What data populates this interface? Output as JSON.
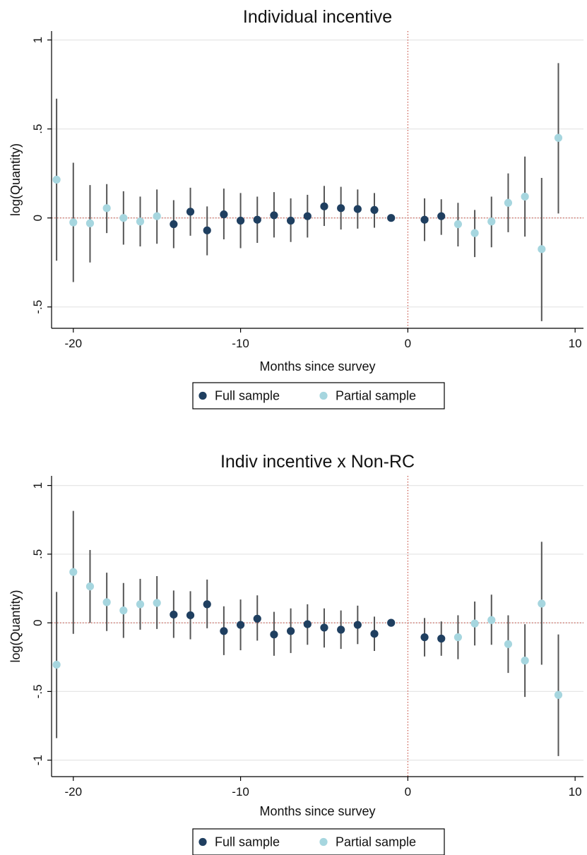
{
  "chart_data": [
    {
      "type": "scatter",
      "title": "Individual incentive",
      "xlabel": "Months since survey",
      "ylabel": "log(Quantity)",
      "xlim": [
        -21.3,
        10.5
      ],
      "ylim": [
        -0.62,
        1.05
      ],
      "xticks": [
        -20,
        -10,
        0,
        10
      ],
      "xtick_labels": [
        "-20",
        "-10",
        "0",
        "10"
      ],
      "yticks": [
        -0.5,
        0,
        0.5,
        1
      ],
      "ytick_labels": [
        "-.5",
        "0",
        ".5",
        "1"
      ],
      "grid": true,
      "legend_position": "bottom-center",
      "reference_lines": {
        "x": 0,
        "y": 0
      },
      "series": [
        {
          "name": "Full sample",
          "color": "#1f3f60",
          "points": [
            {
              "x": -14,
              "y": -0.035,
              "lo": -0.17,
              "hi": 0.1
            },
            {
              "x": -13,
              "y": 0.035,
              "lo": -0.1,
              "hi": 0.17
            },
            {
              "x": -12,
              "y": -0.07,
              "lo": -0.21,
              "hi": 0.065
            },
            {
              "x": -11,
              "y": 0.02,
              "lo": -0.12,
              "hi": 0.165
            },
            {
              "x": -10,
              "y": -0.015,
              "lo": -0.17,
              "hi": 0.14
            },
            {
              "x": -9,
              "y": -0.01,
              "lo": -0.14,
              "hi": 0.12
            },
            {
              "x": -8,
              "y": 0.015,
              "lo": -0.11,
              "hi": 0.145
            },
            {
              "x": -7,
              "y": -0.015,
              "lo": -0.135,
              "hi": 0.11
            },
            {
              "x": -6,
              "y": 0.01,
              "lo": -0.11,
              "hi": 0.13
            },
            {
              "x": -5,
              "y": 0.065,
              "lo": -0.045,
              "hi": 0.18
            },
            {
              "x": -4,
              "y": 0.055,
              "lo": -0.065,
              "hi": 0.175
            },
            {
              "x": -3,
              "y": 0.05,
              "lo": -0.06,
              "hi": 0.16
            },
            {
              "x": -2,
              "y": 0.045,
              "lo": -0.055,
              "hi": 0.14
            },
            {
              "x": -1,
              "y": 0.0
            },
            {
              "x": 1,
              "y": -0.01,
              "lo": -0.13,
              "hi": 0.11
            },
            {
              "x": 2,
              "y": 0.01,
              "lo": -0.095,
              "hi": 0.105
            }
          ]
        },
        {
          "name": "Partial sample",
          "color": "#a6d6df",
          "points": [
            {
              "x": -21,
              "y": 0.215,
              "lo": -0.24,
              "hi": 0.67
            },
            {
              "x": -20,
              "y": -0.025,
              "lo": -0.36,
              "hi": 0.31
            },
            {
              "x": -19,
              "y": -0.03,
              "lo": -0.25,
              "hi": 0.185
            },
            {
              "x": -18,
              "y": 0.055,
              "lo": -0.085,
              "hi": 0.19
            },
            {
              "x": -17,
              "y": 0.0,
              "lo": -0.15,
              "hi": 0.15
            },
            {
              "x": -16,
              "y": -0.02,
              "lo": -0.16,
              "hi": 0.12
            },
            {
              "x": -15,
              "y": 0.01,
              "lo": -0.145,
              "hi": 0.16
            },
            {
              "x": 3,
              "y": -0.035,
              "lo": -0.16,
              "hi": 0.085
            },
            {
              "x": 4,
              "y": -0.085,
              "lo": -0.22,
              "hi": 0.045
            },
            {
              "x": 5,
              "y": -0.02,
              "lo": -0.165,
              "hi": 0.12
            },
            {
              "x": 6,
              "y": 0.085,
              "lo": -0.08,
              "hi": 0.25
            },
            {
              "x": 7,
              "y": 0.12,
              "lo": -0.105,
              "hi": 0.345
            },
            {
              "x": 8,
              "y": -0.175,
              "lo": -0.58,
              "hi": 0.225
            },
            {
              "x": 9,
              "y": 0.45,
              "lo": 0.025,
              "hi": 0.87
            }
          ]
        }
      ]
    },
    {
      "type": "scatter",
      "title": "Indiv incentive x Non-RC",
      "xlabel": "Months since survey",
      "ylabel": "log(Quantity)",
      "xlim": [
        -21.3,
        10.5
      ],
      "ylim": [
        -1.12,
        1.07
      ],
      "xticks": [
        -20,
        -10,
        0,
        10
      ],
      "xtick_labels": [
        "-20",
        "-10",
        "0",
        "10"
      ],
      "yticks": [
        -1,
        -0.5,
        0,
        0.5,
        1
      ],
      "ytick_labels": [
        "-1",
        "-.5",
        "0",
        ".5",
        "1"
      ],
      "grid": true,
      "legend_position": "bottom-center",
      "reference_lines": {
        "x": 0,
        "y": 0
      },
      "series": [
        {
          "name": "Full sample",
          "color": "#1f3f60",
          "points": [
            {
              "x": -14,
              "y": 0.06,
              "lo": -0.11,
              "hi": 0.235
            },
            {
              "x": -13,
              "y": 0.055,
              "lo": -0.12,
              "hi": 0.23
            },
            {
              "x": -12,
              "y": 0.135,
              "lo": -0.04,
              "hi": 0.315
            },
            {
              "x": -11,
              "y": -0.06,
              "lo": -0.235,
              "hi": 0.12
            },
            {
              "x": -10,
              "y": -0.015,
              "lo": -0.2,
              "hi": 0.17
            },
            {
              "x": -9,
              "y": 0.03,
              "lo": -0.13,
              "hi": 0.2
            },
            {
              "x": -8,
              "y": -0.085,
              "lo": -0.24,
              "hi": 0.08
            },
            {
              "x": -7,
              "y": -0.06,
              "lo": -0.22,
              "hi": 0.105
            },
            {
              "x": -6,
              "y": -0.01,
              "lo": -0.16,
              "hi": 0.135
            },
            {
              "x": -5,
              "y": -0.035,
              "lo": -0.18,
              "hi": 0.105
            },
            {
              "x": -4,
              "y": -0.05,
              "lo": -0.19,
              "hi": 0.09
            },
            {
              "x": -3,
              "y": -0.015,
              "lo": -0.155,
              "hi": 0.125
            },
            {
              "x": -2,
              "y": -0.08,
              "lo": -0.205,
              "hi": 0.045
            },
            {
              "x": -1,
              "y": 0.0
            },
            {
              "x": 1,
              "y": -0.105,
              "lo": -0.245,
              "hi": 0.035
            },
            {
              "x": 2,
              "y": -0.115,
              "lo": -0.24,
              "hi": 0.01
            }
          ]
        },
        {
          "name": "Partial sample",
          "color": "#a6d6df",
          "points": [
            {
              "x": -21,
              "y": -0.305,
              "lo": -0.84,
              "hi": 0.225
            },
            {
              "x": -20,
              "y": 0.37,
              "lo": -0.08,
              "hi": 0.815
            },
            {
              "x": -19,
              "y": 0.265,
              "lo": 0.0,
              "hi": 0.53
            },
            {
              "x": -18,
              "y": 0.15,
              "lo": -0.06,
              "hi": 0.365
            },
            {
              "x": -17,
              "y": 0.09,
              "lo": -0.11,
              "hi": 0.29
            },
            {
              "x": -16,
              "y": 0.135,
              "lo": -0.05,
              "hi": 0.32
            },
            {
              "x": -15,
              "y": 0.145,
              "lo": -0.045,
              "hi": 0.34
            },
            {
              "x": 3,
              "y": -0.105,
              "lo": -0.265,
              "hi": 0.055
            },
            {
              "x": 4,
              "y": -0.005,
              "lo": -0.165,
              "hi": 0.155
            },
            {
              "x": 5,
              "y": 0.02,
              "lo": -0.16,
              "hi": 0.205
            },
            {
              "x": 6,
              "y": -0.155,
              "lo": -0.365,
              "hi": 0.055
            },
            {
              "x": 7,
              "y": -0.275,
              "lo": -0.54,
              "hi": -0.01
            },
            {
              "x": 8,
              "y": 0.14,
              "lo": -0.305,
              "hi": 0.59
            },
            {
              "x": 9,
              "y": -0.525,
              "lo": -0.97,
              "hi": -0.085
            }
          ]
        }
      ]
    }
  ]
}
